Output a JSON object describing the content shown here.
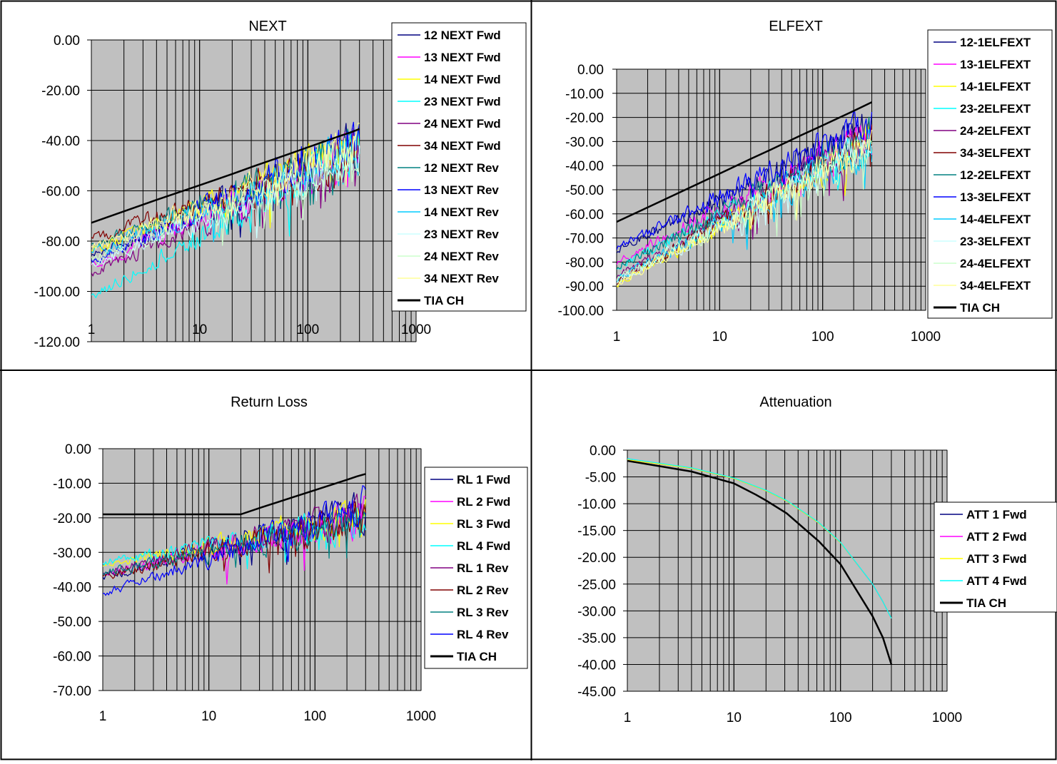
{
  "chart_data": [
    {
      "type": "line",
      "title": "NEXT",
      "x_scale": "log",
      "xlim": [
        1,
        1000
      ],
      "ylim": [
        -120,
        0
      ],
      "y_ticks": [
        "0.00",
        "-20.00",
        "-40.00",
        "-60.00",
        "-80.00",
        "-100.00",
        "-120.00"
      ],
      "x_ticks": [
        "1",
        "10",
        "100",
        "1000"
      ],
      "plot_background": "#c0c0c0",
      "grid": true,
      "legend_position": "right",
      "series": [
        {
          "name": "12 NEXT  Fwd",
          "color": "#000080",
          "x_start": 1,
          "x_end": 300,
          "start": -86,
          "end": -42
        },
        {
          "name": "13 NEXT  Fwd",
          "color": "#ff00ff",
          "x_start": 1,
          "x_end": 300,
          "start": -90,
          "end": -44
        },
        {
          "name": "14 NEXT  Fwd",
          "color": "#ffff00",
          "x_start": 1,
          "x_end": 300,
          "start": -84,
          "end": -41
        },
        {
          "name": "23 NEXT  Fwd",
          "color": "#00ffff",
          "x_start": 1,
          "x_end": 300,
          "start": -102,
          "end": -43
        },
        {
          "name": "24 NEXT  Fwd",
          "color": "#800080",
          "x_start": 1,
          "x_end": 300,
          "start": -93,
          "end": -45
        },
        {
          "name": "34 NEXT  Fwd",
          "color": "#800000",
          "x_start": 1,
          "x_end": 300,
          "start": -79,
          "end": -46
        },
        {
          "name": "12 NEXT  Rev",
          "color": "#008080",
          "x_start": 1,
          "x_end": 300,
          "start": -82,
          "end": -42
        },
        {
          "name": "13 NEXT  Rev",
          "color": "#0000ff",
          "x_start": 1,
          "x_end": 300,
          "start": -88,
          "end": -40
        },
        {
          "name": "14 NEXT  Rev",
          "color": "#00ccff",
          "x_start": 1,
          "x_end": 300,
          "start": -85,
          "end": -44
        },
        {
          "name": "23 NEXT  Rev",
          "color": "#ccffff",
          "x_start": 1,
          "x_end": 300,
          "start": -90,
          "end": -46
        },
        {
          "name": "24 NEXT  Rev",
          "color": "#ccffcc",
          "x_start": 1,
          "x_end": 300,
          "start": -87,
          "end": -45
        },
        {
          "name": "34 NEXT  Rev",
          "color": "#ffff99",
          "x_start": 1,
          "x_end": 300,
          "start": -83,
          "end": -43
        },
        {
          "name": "TIA CH",
          "color": "#000000",
          "bold": true,
          "x": [
            1,
            4,
            10,
            20,
            31.25,
            62.5,
            100,
            200,
            250,
            300
          ],
          "values": [
            -72.7,
            -63.6,
            -57.8,
            -53.3,
            -50.3,
            -45.8,
            -42.7,
            -38.1,
            -36.7,
            -35.4
          ]
        }
      ]
    },
    {
      "type": "line",
      "title": "ELFEXT",
      "x_scale": "log",
      "xlim": [
        1,
        1000
      ],
      "ylim": [
        -100,
        0
      ],
      "y_ticks": [
        "0.00",
        "-10.00",
        "-20.00",
        "-30.00",
        "-40.00",
        "-50.00",
        "-60.00",
        "-70.00",
        "-80.00",
        "-90.00",
        "-100.00"
      ],
      "x_ticks": [
        "1",
        "10",
        "100",
        "1000"
      ],
      "plot_background": "#c0c0c0",
      "grid": true,
      "legend_position": "right",
      "series": [
        {
          "name": "12-1ELFEXT",
          "color": "#000080",
          "x_start": 1,
          "x_end": 300,
          "start": -75,
          "end": -24
        },
        {
          "name": "13-1ELFEXT",
          "color": "#ff00ff",
          "x_start": 1,
          "x_end": 300,
          "start": -80,
          "end": -27
        },
        {
          "name": "14-1ELFEXT",
          "color": "#ffff00",
          "x_start": 1,
          "x_end": 300,
          "start": -89,
          "end": -30
        },
        {
          "name": "23-2ELFEXT",
          "color": "#00ffff",
          "x_start": 1,
          "x_end": 300,
          "start": -82,
          "end": -31
        },
        {
          "name": "24-2ELFEXT",
          "color": "#800080",
          "x_start": 1,
          "x_end": 300,
          "start": -86,
          "end": -28
        },
        {
          "name": "34-3ELFEXT",
          "color": "#800000",
          "x_start": 1,
          "x_end": 300,
          "start": -88,
          "end": -29
        },
        {
          "name": "12-2ELFEXT",
          "color": "#008080",
          "x_start": 1,
          "x_end": 300,
          "start": -82,
          "end": -27
        },
        {
          "name": "13-3ELFEXT",
          "color": "#0000ff",
          "x_start": 1,
          "x_end": 300,
          "start": -74,
          "end": -23
        },
        {
          "name": "14-4ELFEXT",
          "color": "#00ccff",
          "x_start": 1,
          "x_end": 300,
          "start": -87,
          "end": -32
        },
        {
          "name": "23-3ELFEXT",
          "color": "#ccffff",
          "x_start": 1,
          "x_end": 300,
          "start": -88,
          "end": -31
        },
        {
          "name": "24-4ELFEXT",
          "color": "#ccffcc",
          "x_start": 1,
          "x_end": 300,
          "start": -87,
          "end": -33
        },
        {
          "name": "34-4ELFEXT",
          "color": "#ffff99",
          "x_start": 1,
          "x_end": 300,
          "start": -89,
          "end": -31
        },
        {
          "name": "TIA CH",
          "color": "#000000",
          "bold": true,
          "x": [
            1,
            4,
            10,
            20,
            31.25,
            62.5,
            100,
            200,
            250,
            300
          ],
          "values": [
            -63.3,
            -51.3,
            -43.3,
            -37.2,
            -33.4,
            -27.3,
            -23.3,
            -17.3,
            -15.3,
            -13.7
          ]
        }
      ]
    },
    {
      "type": "line",
      "title": "Return Loss",
      "x_scale": "log",
      "xlim": [
        1,
        1000
      ],
      "ylim": [
        -70,
        0
      ],
      "y_ticks": [
        "0.00",
        "-10.00",
        "-20.00",
        "-30.00",
        "-40.00",
        "-50.00",
        "-60.00",
        "-70.00"
      ],
      "x_ticks": [
        "1",
        "10",
        "100",
        "1000"
      ],
      "plot_background": "#c0c0c0",
      "grid": true,
      "legend_position": "right",
      "series": [
        {
          "name": "RL 1  Fwd",
          "color": "#000080",
          "x_start": 1,
          "x_end": 300,
          "start": -37,
          "end": -18
        },
        {
          "name": "RL 2  Fwd",
          "color": "#ff00ff",
          "x_start": 1,
          "x_end": 300,
          "start": -36,
          "end": -20
        },
        {
          "name": "RL 3  Fwd",
          "color": "#ffff00",
          "x_start": 1,
          "x_end": 300,
          "start": -34,
          "end": -19
        },
        {
          "name": "RL 4  Fwd",
          "color": "#00ffff",
          "x_start": 1,
          "x_end": 300,
          "start": -33,
          "end": -21
        },
        {
          "name": "RL 1  Rev",
          "color": "#800080",
          "x_start": 1,
          "x_end": 300,
          "start": -36,
          "end": -19
        },
        {
          "name": "RL 2  Rev",
          "color": "#800000",
          "x_start": 1,
          "x_end": 300,
          "start": -37,
          "end": -20
        },
        {
          "name": "RL 3  Rev",
          "color": "#008080",
          "x_start": 1,
          "x_end": 300,
          "start": -36,
          "end": -21
        },
        {
          "name": "RL 4  Rev",
          "color": "#0000ff",
          "x_start": 1,
          "x_end": 300,
          "start": -42,
          "end": -17
        },
        {
          "name": "TIA CH",
          "color": "#000000",
          "bold": true,
          "x": [
            1,
            20,
            31.25,
            62.5,
            100,
            200,
            250,
            300
          ],
          "values": [
            -19,
            -19,
            -17,
            -14,
            -12,
            -9,
            -8,
            -7.3
          ]
        }
      ]
    },
    {
      "type": "line",
      "title": "Attenuation",
      "x_scale": "log",
      "xlim": [
        1,
        1000
      ],
      "ylim": [
        -45,
        0
      ],
      "y_ticks": [
        "0.00",
        "-5.00",
        "-10.00",
        "-15.00",
        "-20.00",
        "-25.00",
        "-30.00",
        "-35.00",
        "-40.00",
        "-45.00"
      ],
      "x_ticks": [
        "1",
        "10",
        "100",
        "1000"
      ],
      "plot_background": "#c0c0c0",
      "grid": true,
      "legend_position": "right",
      "series": [
        {
          "name": "ATT 1  Fwd",
          "color": "#000080",
          "x": [
            1,
            4,
            10,
            20,
            31.25,
            62.5,
            100,
            200,
            250,
            300
          ],
          "values": [
            -1.8,
            -3.4,
            -5.3,
            -7.6,
            -9.5,
            -13.6,
            -17.3,
            -25.0,
            -28.3,
            -31.4
          ]
        },
        {
          "name": "ATT 2  Fwd",
          "color": "#ff00ff",
          "x": [
            1,
            4,
            10,
            20,
            31.25,
            62.5,
            100,
            200,
            250,
            300
          ],
          "values": [
            -1.8,
            -3.4,
            -5.3,
            -7.6,
            -9.5,
            -13.6,
            -17.3,
            -25.0,
            -28.3,
            -31.4
          ]
        },
        {
          "name": "ATT 3  Fwd",
          "color": "#ffff00",
          "x": [
            1,
            4,
            10,
            20,
            31.25,
            62.5,
            100,
            200,
            250,
            300
          ],
          "values": [
            -1.8,
            -3.4,
            -5.3,
            -7.6,
            -9.5,
            -13.6,
            -17.3,
            -25.0,
            -28.3,
            -31.4
          ]
        },
        {
          "name": "ATT 4  Fwd",
          "color": "#00ffff",
          "x": [
            1,
            4,
            10,
            20,
            31.25,
            62.5,
            100,
            200,
            250,
            300
          ],
          "values": [
            -1.6,
            -3.3,
            -5.2,
            -7.5,
            -9.4,
            -13.5,
            -17.2,
            -25.0,
            -28.3,
            -31.4
          ]
        },
        {
          "name": "TIA CH",
          "color": "#000000",
          "bold": true,
          "x": [
            1,
            4,
            10,
            16,
            20,
            31.25,
            62.5,
            100,
            200,
            250,
            300
          ],
          "values": [
            -2.0,
            -4.0,
            -6.2,
            -8.3,
            -9.4,
            -11.8,
            -17.0,
            -21.3,
            -31.0,
            -35.0,
            -40.0
          ]
        }
      ]
    }
  ]
}
